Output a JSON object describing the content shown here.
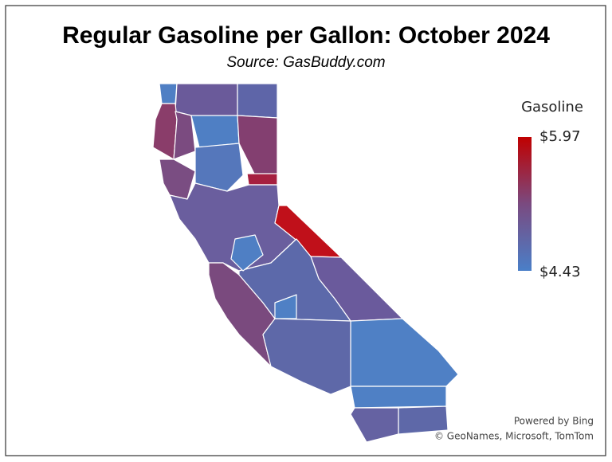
{
  "header": {
    "title": "Regular Gasoline per Gallon:  October 2024",
    "subtitle": "Source:  GasBuddy.com"
  },
  "legend": {
    "title": "Gasoline",
    "max_label": "$5.97",
    "min_label": "$4.43"
  },
  "attribution": {
    "provider": "Powered by Bing",
    "credits": "© GeoNames, Microsoft, TomTom"
  }
}
